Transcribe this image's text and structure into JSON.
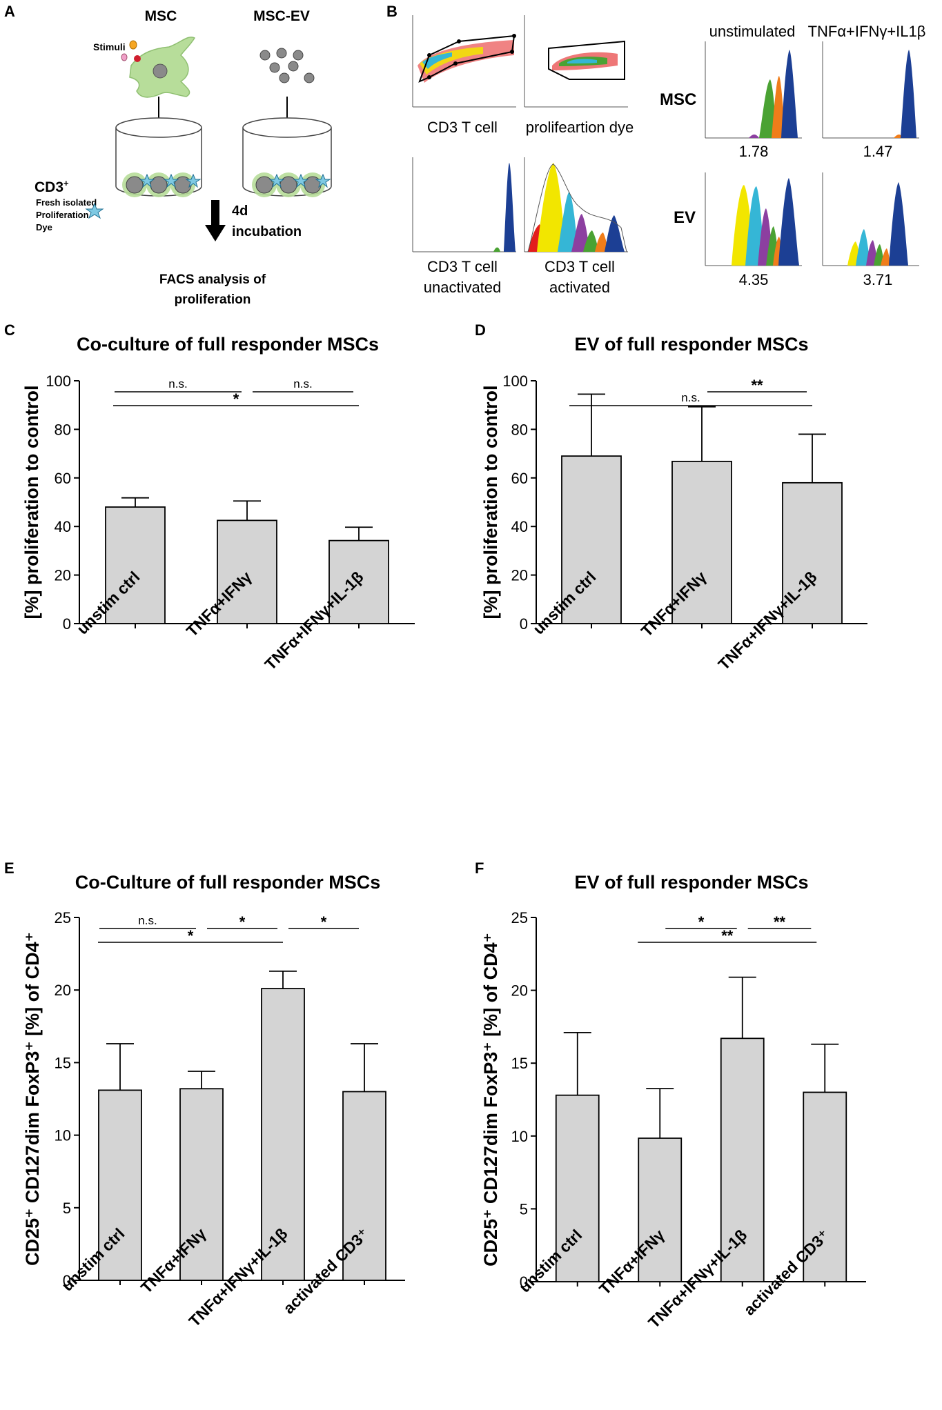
{
  "panels": {
    "A": {
      "letter": "A",
      "msc_label": "MSC",
      "ev_label": "MSC-EV",
      "stimuli_label": "Stimuli",
      "cd3_label": "CD3",
      "cd3_sup": "+",
      "cd3_desc_1": "Fresh isolated",
      "cd3_desc_2": "Proliferation",
      "cd3_desc_3": "Dye",
      "incubation_1": "4d",
      "incubation_2": "incubation",
      "facs_1": "FACS analysis of",
      "facs_2": "proliferation"
    },
    "B": {
      "letter": "B",
      "gate1_label": "CD3 T cell",
      "gate2_label": "prolifeartion dye",
      "hist1_label_1": "CD3 T cell",
      "hist1_label_2": "unactivated",
      "hist2_label_1": "CD3 T cell",
      "hist2_label_2": "activated",
      "col1_header": "unstimulated",
      "col2_header": "TNFα+IFNγ+IL1β",
      "row1_header": "MSC",
      "row2_header": "EV",
      "msc_unstim_value": "1.78",
      "msc_stim_value": "1.47",
      "ev_unstim_value": "4.35",
      "ev_stim_value": "3.71"
    }
  },
  "colors": {
    "bar_fill": "#d4d4d4",
    "hist_blue": "#1c3f94",
    "hist_orange": "#f07d1a",
    "hist_green": "#4aa233",
    "hist_purple": "#8c3fa0",
    "hist_cyan": "#35b6d6",
    "hist_yellow": "#f2e600",
    "hist_red": "#e31d1d"
  },
  "chart_data": [
    {
      "id": "C",
      "letter": "C",
      "type": "bar",
      "title": "Co-culture of full responder MSCs",
      "ylabel": "[%] proliferation to control",
      "xlabel": "",
      "categories": [
        "unstim ctrl",
        "TNFα+IFNγ",
        "TNFα+IFNγ+IL-1β"
      ],
      "values": [
        48,
        42.5,
        34.2
      ],
      "errors": [
        3.8,
        8,
        5.5
      ],
      "ylim": [
        0,
        100
      ],
      "yticks": [
        0,
        20,
        40,
        60,
        80,
        100
      ],
      "significance": [
        {
          "from": 0,
          "to": 1,
          "label": "n.s.",
          "level": 0
        },
        {
          "from": 1,
          "to": 2,
          "label": "n.s.",
          "level": 0
        },
        {
          "from": 0,
          "to": 2,
          "label": "*",
          "level": 1
        }
      ]
    },
    {
      "id": "D",
      "letter": "D",
      "type": "bar",
      "title": "EV of full responder MSCs",
      "ylabel": "[%] proliferation to control",
      "xlabel": "",
      "categories": [
        "unstim ctrl",
        "TNFα+IFNγ",
        "TNFα+IFNγ+IL-1β"
      ],
      "values": [
        69,
        66.8,
        58
      ],
      "errors": [
        25.5,
        22.5,
        20
      ],
      "ylim": [
        0,
        100
      ],
      "yticks": [
        0,
        20,
        40,
        60,
        80,
        100
      ],
      "significance": [
        {
          "from": 0,
          "to": 2,
          "label": "n.s.",
          "level": 1
        },
        {
          "from": 1,
          "to": 2,
          "label": "**",
          "level": 0
        }
      ]
    },
    {
      "id": "E",
      "letter": "E",
      "type": "bar",
      "title": "Co-Culture of full responder MSCs",
      "ylabel": "CD25⁺ CD127dim FoxP3⁺ [%] of CD4⁺",
      "xlabel": "",
      "categories": [
        "unstim ctrl",
        "TNFα+IFNγ",
        "TNFα+IFNγ+IL-1β",
        "activated CD3⁺"
      ],
      "values": [
        13.1,
        13.2,
        20.1,
        13.0
      ],
      "errors": [
        3.2,
        1.2,
        1.2,
        3.3
      ],
      "ylim": [
        0,
        25
      ],
      "yticks": [
        0,
        5,
        10,
        15,
        20,
        25
      ],
      "significance": [
        {
          "from": 0,
          "to": 1,
          "label": "n.s.",
          "level": 0
        },
        {
          "from": 1,
          "to": 2,
          "label": "*",
          "level": 0
        },
        {
          "from": 2,
          "to": 3,
          "label": "*",
          "level": 0
        },
        {
          "from": 0,
          "to": 2,
          "label": "*",
          "level": 1
        }
      ]
    },
    {
      "id": "F",
      "letter": "F",
      "type": "bar",
      "title": "EV of full responder MSCs",
      "ylabel": "CD25⁺ CD127dim FoxP3⁺ [%] of CD4⁺",
      "xlabel": "",
      "categories": [
        "unstim ctrl",
        "TNFα+IFNγ",
        "TNFα+IFNγ+IL-1β",
        "activated CD3⁺"
      ],
      "values": [
        12.8,
        9.85,
        16.7,
        13.0
      ],
      "errors": [
        4.3,
        3.4,
        4.2,
        3.3
      ],
      "ylim": [
        0,
        25
      ],
      "yticks": [
        0,
        5,
        10,
        15,
        20,
        25
      ],
      "significance": [
        {
          "from": 1,
          "to": 2,
          "label": "*",
          "level": 0
        },
        {
          "from": 2,
          "to": 2.9,
          "label": "**",
          "level": 0
        },
        {
          "from": 1,
          "to": 2.9,
          "label": "**",
          "level": 1
        }
      ]
    }
  ]
}
